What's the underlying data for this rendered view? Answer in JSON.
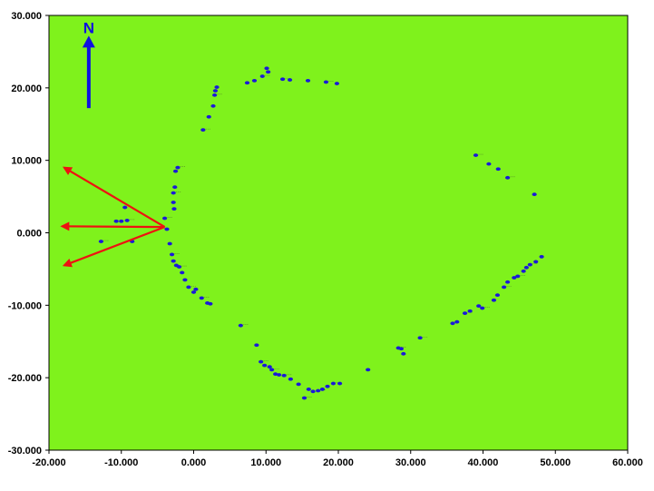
{
  "colors": {
    "background": "#ffffff",
    "plot_fill": "#7ff21c",
    "frame": "#000000",
    "points": "#1a1ad8",
    "arrows": "#ee1111",
    "north_arrow": "#1010e0"
  },
  "north_arrow": {
    "label": "N",
    "icon": "north-arrow-icon",
    "x": -14.5,
    "y_from": 17.2,
    "y_to": 27.2
  },
  "chart_data": {
    "type": "scatter",
    "title": "",
    "xlabel": "",
    "ylabel": "",
    "xlim": [
      -20,
      60
    ],
    "ylim": [
      -30,
      30
    ],
    "grid": false,
    "legend": "none",
    "x_ticks": [
      "-20.000",
      "-10.000",
      "0.000",
      "10.000",
      "20.000",
      "30.000",
      "40.000",
      "50.000",
      "60.000"
    ],
    "y_ticks": [
      "30.000",
      "20.000",
      "10.000",
      "0.000",
      "-10.000",
      "-20.000",
      "-30.000"
    ],
    "x_tick_values": [
      -20,
      -10,
      0,
      10,
      20,
      30,
      40,
      50,
      60
    ],
    "y_tick_values": [
      30,
      20,
      10,
      0,
      -10,
      -20,
      -30
    ],
    "series": [
      {
        "points": [
          [
            -12.8,
            -1.2
          ],
          [
            -10.7,
            1.6
          ],
          [
            -10.0,
            1.6
          ],
          [
            -9.2,
            1.7
          ],
          [
            -8.5,
            -1.2
          ],
          [
            -9.5,
            3.5
          ],
          [
            -4.0,
            2.0
          ],
          [
            -3.7,
            0.5
          ],
          [
            -3.3,
            -1.5
          ],
          [
            -3.0,
            -3.0
          ],
          [
            -2.7,
            3.3
          ],
          [
            -2.8,
            4.2
          ],
          [
            -2.8,
            5.5
          ],
          [
            -2.6,
            6.3
          ],
          [
            -2.5,
            8.5
          ],
          [
            -2.2,
            9.0
          ],
          [
            -2.8,
            -3.9
          ],
          [
            -2.4,
            -4.5
          ],
          [
            -2.0,
            -4.7
          ],
          [
            -1.6,
            -5.5
          ],
          [
            -1.2,
            -6.5
          ],
          [
            -0.7,
            -7.5
          ],
          [
            0.0,
            -8.2
          ],
          [
            0.3,
            -7.8
          ],
          [
            1.1,
            -9.0
          ],
          [
            1.9,
            -9.7
          ],
          [
            2.3,
            -9.8
          ],
          [
            1.3,
            14.2
          ],
          [
            2.1,
            16.0
          ],
          [
            2.7,
            17.5
          ],
          [
            2.9,
            19.0
          ],
          [
            3.0,
            19.6
          ],
          [
            3.2,
            20.1
          ],
          [
            6.5,
            -12.8
          ],
          [
            7.4,
            20.7
          ],
          [
            8.4,
            21.0
          ],
          [
            9.5,
            21.6
          ],
          [
            10.3,
            22.2
          ],
          [
            10.1,
            22.7
          ],
          [
            12.3,
            21.2
          ],
          [
            13.3,
            21.1
          ],
          [
            15.8,
            21.0
          ],
          [
            18.3,
            20.8
          ],
          [
            19.8,
            20.6
          ],
          [
            8.7,
            -15.5
          ],
          [
            9.3,
            -17.8
          ],
          [
            9.8,
            -18.3
          ],
          [
            10.5,
            -18.5
          ],
          [
            10.8,
            -18.9
          ],
          [
            11.3,
            -19.5
          ],
          [
            11.8,
            -19.6
          ],
          [
            12.5,
            -19.7
          ],
          [
            13.4,
            -20.2
          ],
          [
            14.5,
            -20.9
          ],
          [
            15.3,
            -22.8
          ],
          [
            15.9,
            -21.6
          ],
          [
            16.5,
            -21.9
          ],
          [
            17.2,
            -21.8
          ],
          [
            17.8,
            -21.6
          ],
          [
            18.5,
            -21.2
          ],
          [
            19.3,
            -20.8
          ],
          [
            20.2,
            -20.8
          ],
          [
            24.1,
            -18.9
          ],
          [
            28.3,
            -15.9
          ],
          [
            28.7,
            -16.0
          ],
          [
            29.0,
            -16.7
          ],
          [
            31.3,
            -14.5
          ],
          [
            35.8,
            -12.5
          ],
          [
            36.4,
            -12.3
          ],
          [
            37.5,
            -11.1
          ],
          [
            38.2,
            -10.8
          ],
          [
            39.4,
            -10.1
          ],
          [
            39.9,
            -10.4
          ],
          [
            41.5,
            -9.3
          ],
          [
            42.0,
            -8.6
          ],
          [
            42.9,
            -7.5
          ],
          [
            43.4,
            -6.8
          ],
          [
            44.3,
            -6.2
          ],
          [
            44.8,
            -6.0
          ],
          [
            45.6,
            -5.3
          ],
          [
            46.0,
            -4.8
          ],
          [
            46.5,
            -4.4
          ],
          [
            47.3,
            -4.0
          ],
          [
            48.1,
            -3.3
          ],
          [
            39.0,
            10.7
          ],
          [
            40.8,
            9.5
          ],
          [
            42.1,
            8.8
          ],
          [
            43.4,
            7.6
          ],
          [
            47.1,
            5.3
          ]
        ]
      }
    ],
    "direction_arrows": [
      {
        "from": [
          -4.0,
          0.8
        ],
        "to": [
          -17.9,
          9.0
        ]
      },
      {
        "from": [
          -4.0,
          0.8
        ],
        "to": [
          -18.2,
          0.9
        ]
      },
      {
        "from": [
          -4.0,
          0.8
        ],
        "to": [
          -17.9,
          -4.5
        ]
      }
    ]
  }
}
